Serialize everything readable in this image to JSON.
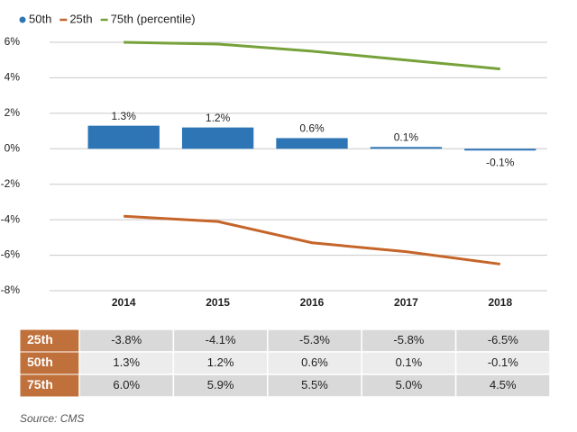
{
  "chart_data": {
    "type": "bar",
    "categories": [
      "2014",
      "2015",
      "2016",
      "2017",
      "2018"
    ],
    "series": [
      {
        "name": "50th",
        "type": "bar",
        "color": "#2e75b6",
        "values": [
          1.3,
          1.2,
          0.6,
          0.1,
          -0.1
        ],
        "value_labels": [
          "1.3%",
          "1.2%",
          "0.6%",
          "0.1%",
          "-0.1%"
        ]
      },
      {
        "name": "25th",
        "type": "line",
        "color": "#c5652a",
        "values": [
          -3.8,
          -4.1,
          -5.3,
          -5.8,
          -6.5
        ],
        "value_labels": [
          "-3.8%",
          "-4.1%",
          "-5.3%",
          "-5.8%",
          "-6.5%"
        ]
      },
      {
        "name": "75th (percentile)",
        "type": "line",
        "color": "#77a13a",
        "values": [
          6.0,
          5.9,
          5.5,
          5.0,
          4.5
        ],
        "value_labels": [
          "6.0%",
          "5.9%",
          "5.5%",
          "5.0%",
          "4.5%"
        ]
      }
    ],
    "ylim": [
      -8,
      6
    ],
    "yticks": [
      {
        "value": -8,
        "label": "-8%"
      },
      {
        "value": -6,
        "label": "-6%"
      },
      {
        "value": -4,
        "label": "-4%"
      },
      {
        "value": -2,
        "label": "-2%"
      },
      {
        "value": 0,
        "label": "0%"
      },
      {
        "value": 2,
        "label": "2%"
      },
      {
        "value": 4,
        "label": "4%"
      },
      {
        "value": 6,
        "label": "6%"
      }
    ],
    "grid": true,
    "legend": "top-left",
    "source": "Source: CMS"
  },
  "table": {
    "row_labels": [
      "25th",
      "50th",
      "75th"
    ],
    "row_series": [
      1,
      0,
      2
    ],
    "label_color": "#c0703a"
  }
}
